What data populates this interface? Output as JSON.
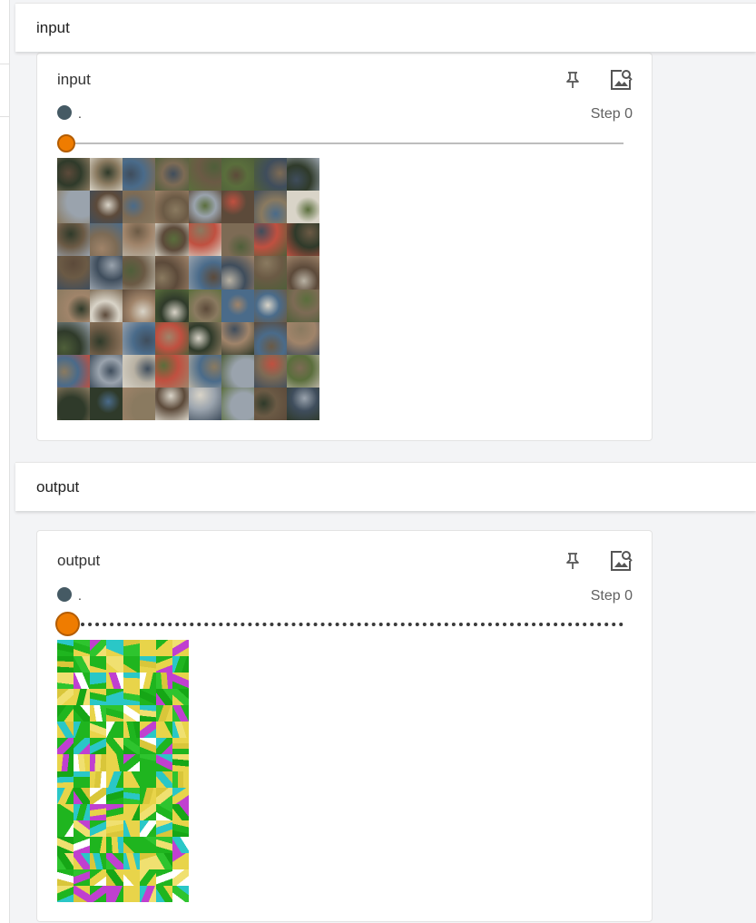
{
  "groups": [
    {
      "header": "input",
      "card": {
        "title": "input",
        "run_name": ".",
        "run_color": "#455a64",
        "step_label": "Step 0",
        "slider_value": 0
      }
    },
    {
      "header": "output",
      "card": {
        "title": "output",
        "run_name": ".",
        "run_color": "#455a64",
        "step_label": "Step 0",
        "slider_value": 0
      }
    }
  ],
  "icons": {
    "pin": "pin-icon",
    "expand": "image-expand-icon"
  },
  "colors": {
    "accent": "#ef7c00",
    "run": "#455a64"
  }
}
